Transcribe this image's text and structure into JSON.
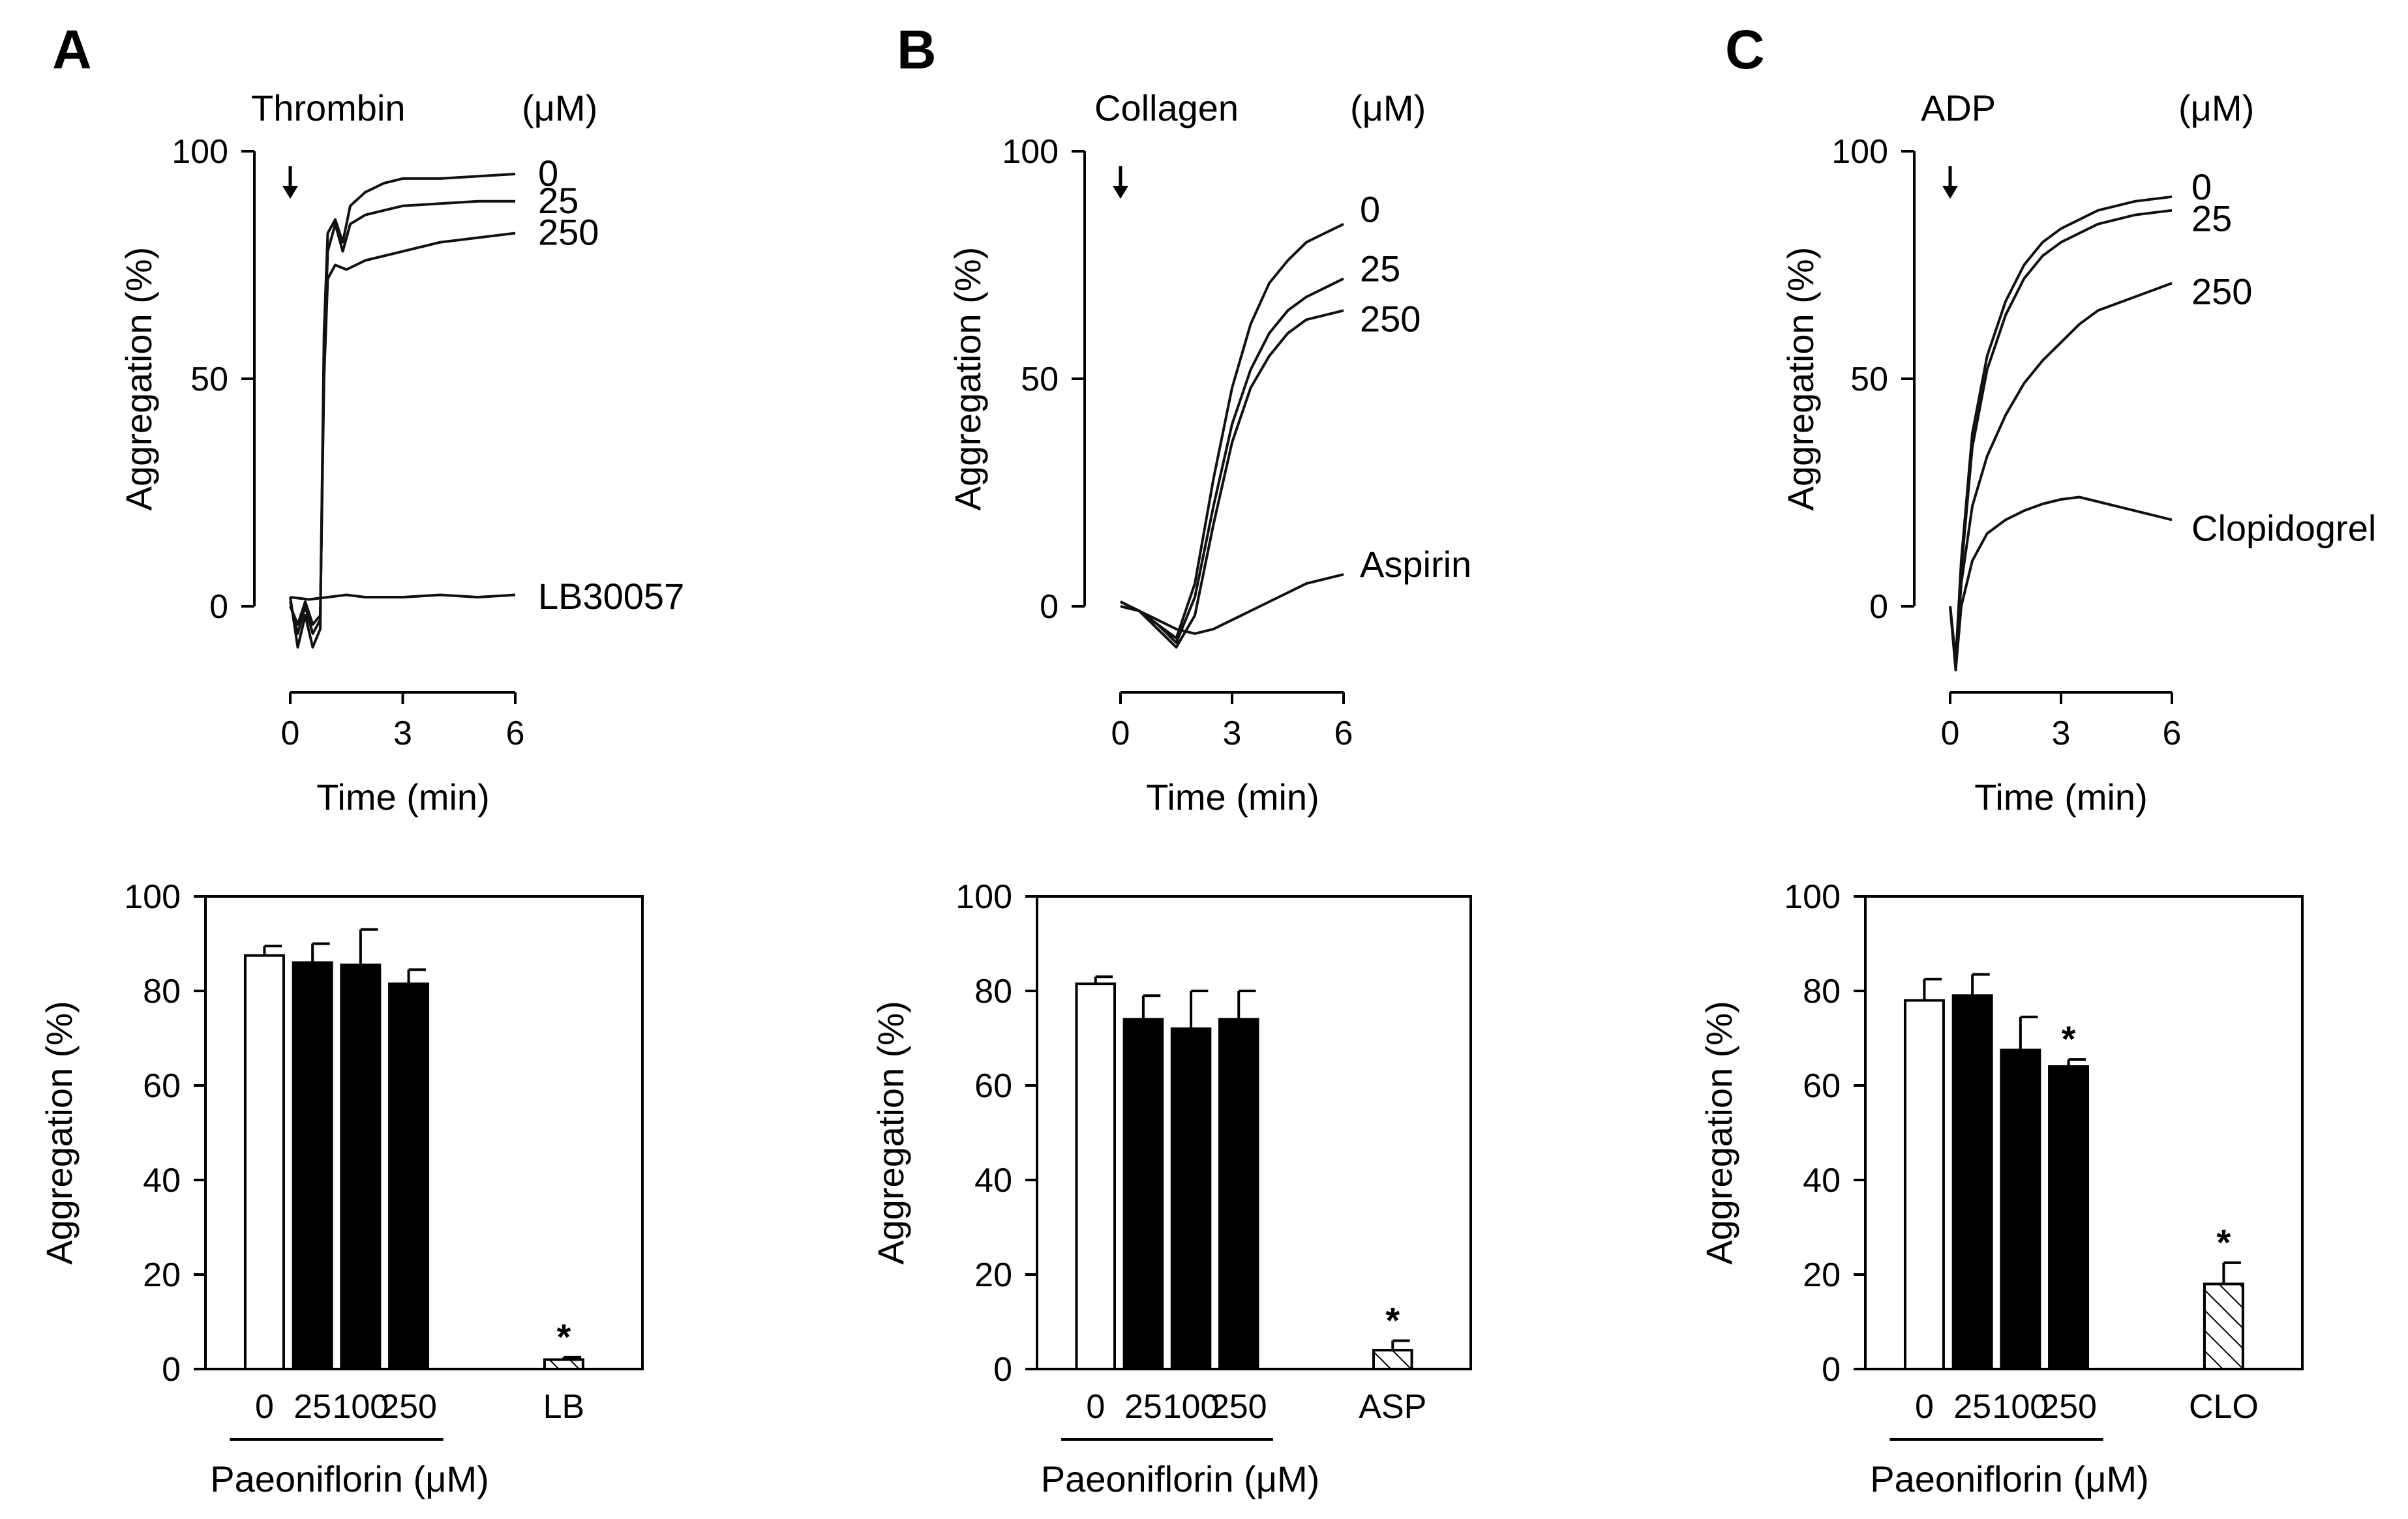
{
  "figure": {
    "panels": [
      "A",
      "B",
      "C"
    ]
  },
  "chart_data": [
    {
      "panel": "A",
      "type": "line",
      "agonist": "Thrombin",
      "unit_label": "(μM)",
      "ylabel": "Aggregation (%)",
      "xlabel": "Time (min)",
      "xlim": [
        0,
        6
      ],
      "ylim": [
        0,
        100
      ],
      "xticks": [
        "0",
        "3",
        "6"
      ],
      "yticks": [
        "0",
        "50",
        "100"
      ],
      "series": [
        {
          "name": "0",
          "label": "0",
          "points": [
            [
              0,
              2
            ],
            [
              0.2,
              -9
            ],
            [
              0.4,
              -2
            ],
            [
              0.6,
              -9
            ],
            [
              0.8,
              -5
            ],
            [
              0.9,
              60
            ],
            [
              1.0,
              82
            ],
            [
              1.2,
              85
            ],
            [
              1.4,
              80
            ],
            [
              1.6,
              88
            ],
            [
              2.0,
              91
            ],
            [
              2.5,
              93
            ],
            [
              3,
              94
            ],
            [
              4,
              94
            ],
            [
              5,
              94.5
            ],
            [
              6,
              95
            ]
          ]
        },
        {
          "name": "25",
          "label": "25",
          "points": [
            [
              0,
              1
            ],
            [
              0.2,
              -6
            ],
            [
              0.4,
              0
            ],
            [
              0.6,
              -6
            ],
            [
              0.8,
              -3
            ],
            [
              0.9,
              55
            ],
            [
              1.0,
              78
            ],
            [
              1.2,
              84
            ],
            [
              1.4,
              78
            ],
            [
              1.6,
              84
            ],
            [
              2.0,
              86
            ],
            [
              2.5,
              87
            ],
            [
              3,
              88
            ],
            [
              4,
              88.5
            ],
            [
              5,
              89
            ],
            [
              6,
              89
            ]
          ]
        },
        {
          "name": "250",
          "label": "250",
          "points": [
            [
              0,
              0
            ],
            [
              0.2,
              -4
            ],
            [
              0.4,
              1
            ],
            [
              0.6,
              -4
            ],
            [
              0.8,
              -2
            ],
            [
              0.9,
              50
            ],
            [
              1.0,
              72
            ],
            [
              1.2,
              75
            ],
            [
              1.5,
              74
            ],
            [
              2.0,
              76
            ],
            [
              3,
              78
            ],
            [
              4,
              80
            ],
            [
              5,
              81
            ],
            [
              6,
              82
            ]
          ]
        },
        {
          "name": "LB30057",
          "label": "LB30057",
          "points": [
            [
              0,
              2
            ],
            [
              0.5,
              1.5
            ],
            [
              1,
              2
            ],
            [
              1.5,
              2.5
            ],
            [
              2,
              2
            ],
            [
              3,
              2
            ],
            [
              4,
              2.5
            ],
            [
              5,
              2
            ],
            [
              6,
              2.5
            ]
          ]
        }
      ]
    },
    {
      "panel": "B",
      "type": "line",
      "agonist": "Collagen",
      "unit_label": "(μM)",
      "ylabel": "Aggregation (%)",
      "xlabel": "Time (min)",
      "xlim": [
        0,
        6
      ],
      "ylim": [
        0,
        100
      ],
      "xticks": [
        "0",
        "3",
        "6"
      ],
      "yticks": [
        "0",
        "50",
        "100"
      ],
      "series": [
        {
          "name": "0",
          "label": "0",
          "points": [
            [
              0,
              1
            ],
            [
              0.5,
              -1
            ],
            [
              1,
              -4
            ],
            [
              1.5,
              -7
            ],
            [
              2,
              5
            ],
            [
              2.5,
              28
            ],
            [
              3,
              48
            ],
            [
              3.5,
              62
            ],
            [
              4,
              71
            ],
            [
              4.5,
              76
            ],
            [
              5,
              80
            ],
            [
              5.5,
              82
            ],
            [
              6,
              84
            ]
          ]
        },
        {
          "name": "25",
          "label": "25",
          "points": [
            [
              0,
              1
            ],
            [
              0.5,
              -1
            ],
            [
              1,
              -4
            ],
            [
              1.5,
              -8
            ],
            [
              2,
              2
            ],
            [
              2.5,
              22
            ],
            [
              3,
              40
            ],
            [
              3.5,
              52
            ],
            [
              4,
              60
            ],
            [
              4.5,
              65
            ],
            [
              5,
              68
            ],
            [
              5.5,
              70
            ],
            [
              6,
              72
            ]
          ]
        },
        {
          "name": "250",
          "label": "250",
          "points": [
            [
              0,
              1
            ],
            [
              0.5,
              -1
            ],
            [
              1,
              -5
            ],
            [
              1.5,
              -9
            ],
            [
              2,
              -2
            ],
            [
              2.5,
              18
            ],
            [
              3,
              36
            ],
            [
              3.5,
              48
            ],
            [
              4,
              55
            ],
            [
              4.5,
              60
            ],
            [
              5,
              63
            ],
            [
              5.5,
              64
            ],
            [
              6,
              65
            ]
          ]
        },
        {
          "name": "Aspirin",
          "label": "Aspirin",
          "points": [
            [
              0,
              0
            ],
            [
              0.5,
              -1
            ],
            [
              1,
              -3
            ],
            [
              1.5,
              -5
            ],
            [
              2,
              -6
            ],
            [
              2.5,
              -5
            ],
            [
              3,
              -3
            ],
            [
              3.5,
              -1
            ],
            [
              4,
              1
            ],
            [
              4.5,
              3
            ],
            [
              5,
              5
            ],
            [
              5.5,
              6
            ],
            [
              6,
              7
            ]
          ]
        }
      ]
    },
    {
      "panel": "C",
      "type": "line",
      "agonist": "ADP",
      "unit_label": "(μM)",
      "ylabel": "Aggregation (%)",
      "xlabel": "Time (min)",
      "xlim": [
        0,
        6
      ],
      "ylim": [
        0,
        100
      ],
      "xticks": [
        "0",
        "3",
        "6"
      ],
      "yticks": [
        "0",
        "50",
        "100"
      ],
      "series": [
        {
          "name": "0",
          "label": "0",
          "points": [
            [
              0,
              0
            ],
            [
              0.15,
              -12
            ],
            [
              0.3,
              10
            ],
            [
              0.6,
              38
            ],
            [
              1,
              55
            ],
            [
              1.5,
              67
            ],
            [
              2,
              75
            ],
            [
              2.5,
              80
            ],
            [
              3,
              83
            ],
            [
              3.5,
              85
            ],
            [
              4,
              87
            ],
            [
              5,
              89
            ],
            [
              6,
              90
            ]
          ]
        },
        {
          "name": "25",
          "label": "25",
          "points": [
            [
              0,
              0
            ],
            [
              0.15,
              -12
            ],
            [
              0.3,
              8
            ],
            [
              0.6,
              35
            ],
            [
              1,
              52
            ],
            [
              1.5,
              64
            ],
            [
              2,
              72
            ],
            [
              2.5,
              77
            ],
            [
              3,
              80
            ],
            [
              3.5,
              82
            ],
            [
              4,
              84
            ],
            [
              5,
              86
            ],
            [
              6,
              87
            ]
          ]
        },
        {
          "name": "250",
          "label": "250",
          "points": [
            [
              0,
              0
            ],
            [
              0.15,
              -13
            ],
            [
              0.3,
              5
            ],
            [
              0.6,
              22
            ],
            [
              1,
              33
            ],
            [
              1.5,
              42
            ],
            [
              2,
              49
            ],
            [
              2.5,
              54
            ],
            [
              3,
              58
            ],
            [
              3.5,
              62
            ],
            [
              4,
              65
            ],
            [
              5,
              68
            ],
            [
              6,
              71
            ]
          ]
        },
        {
          "name": "Clopidogrel",
          "label": "Clopidogrel",
          "points": [
            [
              0,
              0
            ],
            [
              0.15,
              -14
            ],
            [
              0.3,
              0
            ],
            [
              0.6,
              10
            ],
            [
              1,
              16
            ],
            [
              1.5,
              19
            ],
            [
              2,
              21
            ],
            [
              2.5,
              22.5
            ],
            [
              3,
              23.5
            ],
            [
              3.5,
              24
            ],
            [
              4,
              23
            ],
            [
              5,
              21
            ],
            [
              6,
              19
            ]
          ]
        }
      ]
    },
    {
      "panel": "A",
      "type": "bar",
      "ylabel": "Aggregation (%)",
      "xlabel": "Paeoniflorin (μM)",
      "ylim": [
        0,
        100
      ],
      "yticks": [
        "0",
        "20",
        "40",
        "60",
        "80",
        "100"
      ],
      "categories": [
        "0",
        "25",
        "100",
        "250",
        "LB"
      ],
      "values": [
        87.5,
        86,
        85.5,
        81.5,
        2
      ],
      "errors": [
        2,
        4,
        7.5,
        3,
        0.5
      ],
      "fills": [
        "white",
        "black",
        "black",
        "black",
        "hatch"
      ],
      "significant": [
        "",
        "",
        "",
        "",
        "*"
      ]
    },
    {
      "panel": "B",
      "type": "bar",
      "ylabel": "Aggregation (%)",
      "xlabel": "Paeoniflorin (μM)",
      "ylim": [
        0,
        100
      ],
      "yticks": [
        "0",
        "20",
        "40",
        "60",
        "80",
        "100"
      ],
      "categories": [
        "0",
        "25",
        "100",
        "250",
        "ASP"
      ],
      "values": [
        81.5,
        74,
        72,
        74,
        4
      ],
      "errors": [
        1.5,
        5,
        8,
        6,
        2
      ],
      "fills": [
        "white",
        "black",
        "black",
        "black",
        "hatch"
      ],
      "significant": [
        "",
        "",
        "",
        "",
        "*"
      ]
    },
    {
      "panel": "C",
      "type": "bar",
      "ylabel": "Aggregation (%)",
      "xlabel": "Paeoniflorin (μM)",
      "ylim": [
        0,
        100
      ],
      "yticks": [
        "0",
        "20",
        "40",
        "60",
        "80",
        "100"
      ],
      "categories": [
        "0",
        "25",
        "100",
        "250",
        "CLO"
      ],
      "values": [
        78,
        79,
        67.5,
        64,
        18
      ],
      "errors": [
        4.5,
        4.5,
        7,
        1.5,
        4.5
      ],
      "fills": [
        "white",
        "black",
        "black",
        "black",
        "hatch"
      ],
      "significant": [
        "",
        "",
        "",
        "*",
        "*"
      ]
    }
  ]
}
